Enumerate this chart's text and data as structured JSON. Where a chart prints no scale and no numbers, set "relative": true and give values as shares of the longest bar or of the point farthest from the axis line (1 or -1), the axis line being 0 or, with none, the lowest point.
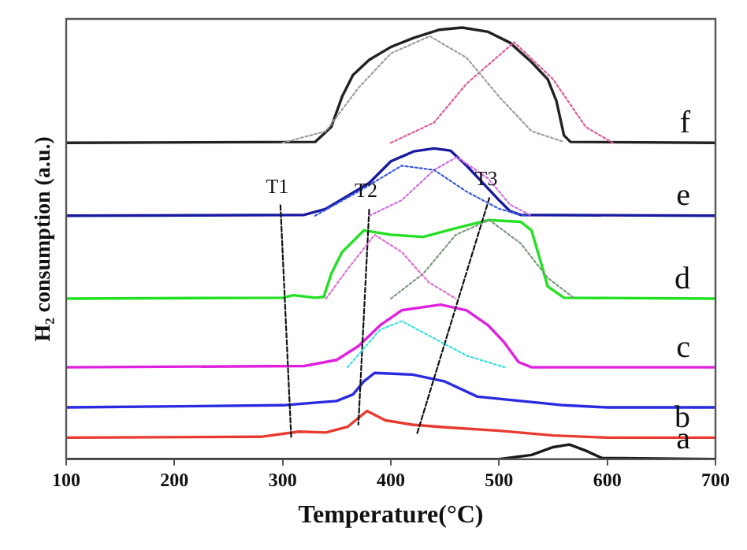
{
  "chart_data": {
    "type": "line",
    "relative": true,
    "xlabel": "Temperature(°C)",
    "ylabel": "H₂ consumption (a.u.)",
    "xlim": [
      100,
      700
    ],
    "xticks": [
      100,
      200,
      300,
      400,
      500,
      600,
      700
    ],
    "grid": false,
    "legend": false,
    "marker": "none",
    "series": [
      {
        "name": "a",
        "color": "#1a1a1a",
        "x": [
          100,
          500,
          530,
          550,
          565,
          580,
          595,
          700
        ],
        "values": [
          0,
          0,
          0.01,
          0.028,
          0.034,
          0.02,
          0.003,
          0
        ]
      },
      {
        "name": "b",
        "color": "#e83a2e",
        "x": [
          100,
          280,
          315,
          340,
          360,
          378,
          395,
          420,
          450,
          500,
          550,
          600,
          700
        ],
        "values": [
          0.05,
          0.052,
          0.064,
          0.062,
          0.075,
          0.112,
          0.09,
          0.08,
          0.074,
          0.066,
          0.055,
          0.05,
          0.05
        ]
      },
      {
        "color": "#2a2ae0",
        "x": [
          100,
          300,
          350,
          365,
          375,
          385,
          420,
          450,
          480,
          520,
          560,
          600,
          700
        ],
        "values": [
          0.12,
          0.125,
          0.135,
          0.15,
          0.18,
          0.2,
          0.196,
          0.18,
          0.145,
          0.135,
          0.125,
          0.12,
          0.12
        ]
      },
      {
        "name": "c",
        "color": "#e020e0",
        "x": [
          100,
          320,
          350,
          370,
          390,
          410,
          446,
          470,
          490,
          505,
          518,
          530,
          700
        ],
        "values": [
          0.213,
          0.216,
          0.23,
          0.262,
          0.31,
          0.345,
          0.358,
          0.345,
          0.31,
          0.27,
          0.225,
          0.213,
          0.213
        ]
      },
      {
        "name": "d",
        "color": "#22e022",
        "x": [
          100,
          300,
          310,
          330,
          338,
          345,
          355,
          375,
          400,
          430,
          460,
          490,
          520,
          530,
          537,
          545,
          560,
          700
        ],
        "values": [
          0.372,
          0.374,
          0.38,
          0.374,
          0.376,
          0.43,
          0.48,
          0.53,
          0.52,
          0.515,
          0.535,
          0.554,
          0.55,
          0.53,
          0.47,
          0.4,
          0.374,
          0.372
        ]
      },
      {
        "name": "e",
        "color": "#1a1aa0",
        "x": [
          100,
          320,
          340,
          360,
          380,
          400,
          421,
          440,
          455,
          470,
          485,
          500,
          510,
          520,
          700
        ],
        "values": [
          0.564,
          0.566,
          0.58,
          0.61,
          0.64,
          0.69,
          0.713,
          0.72,
          0.715,
          0.68,
          0.64,
          0.6,
          0.575,
          0.566,
          0.564
        ]
      },
      {
        "name": "f",
        "color": "#222222",
        "x": [
          100,
          330,
          345,
          355,
          365,
          380,
          400,
          421,
          445,
          466,
          490,
          510,
          530,
          545,
          553,
          560,
          566,
          700
        ],
        "values": [
          0.733,
          0.735,
          0.77,
          0.84,
          0.89,
          0.925,
          0.955,
          0.976,
          0.995,
          1,
          0.99,
          0.965,
          0.92,
          0.88,
          0.83,
          0.75,
          0.735,
          0.733
        ]
      },
      {
        "color": "#9e9e9e",
        "line_style": "dotted",
        "x": [
          300,
          340,
          370,
          400,
          436,
          470,
          500,
          530,
          560
        ],
        "values": [
          0.733,
          0.76,
          0.86,
          0.94,
          0.98,
          0.93,
          0.84,
          0.76,
          0.735
        ]
      },
      {
        "color": "#e05a9e",
        "line_style": "dotted",
        "x": [
          400,
          440,
          470,
          514,
          550,
          580,
          605
        ],
        "values": [
          0.733,
          0.78,
          0.87,
          0.966,
          0.88,
          0.77,
          0.733
        ]
      },
      {
        "color": "#3a5ae0",
        "line_style": "dotted",
        "x": [
          330,
          370,
          410,
          440,
          470,
          500,
          525
        ],
        "values": [
          0.564,
          0.62,
          0.68,
          0.67,
          0.62,
          0.58,
          0.564
        ]
      },
      {
        "color": "#d070e0",
        "line_style": "dotted",
        "x": [
          380,
          410,
          440,
          461,
          490,
          510,
          530
        ],
        "values": [
          0.564,
          0.6,
          0.67,
          0.7,
          0.65,
          0.59,
          0.564
        ]
      },
      {
        "color": "#e070d0",
        "line_style": "dotted",
        "x": [
          340,
          360,
          385,
          410,
          435,
          460
        ],
        "values": [
          0.372,
          0.44,
          0.52,
          0.48,
          0.41,
          0.372
        ]
      },
      {
        "color": "#7a9a7a",
        "line_style": "dotted",
        "x": [
          400,
          430,
          460,
          491,
          520,
          545,
          570
        ],
        "values": [
          0.372,
          0.43,
          0.52,
          0.554,
          0.5,
          0.42,
          0.372
        ]
      },
      {
        "color": "#40e0e0",
        "line_style": "dotted",
        "x": [
          360,
          390,
          410,
          440,
          470,
          505
        ],
        "values": [
          0.213,
          0.3,
          0.32,
          0.28,
          0.24,
          0.213
        ]
      },
      {
        "name": "T1",
        "color": "#111111",
        "line_style": "dashed",
        "x": [
          298,
          308
        ],
        "values": [
          0.588,
          0.047
        ]
      },
      {
        "name": "T2",
        "color": "#111111",
        "line_style": "dashed",
        "x": [
          380,
          370
        ],
        "values": [
          0.578,
          0.08
        ]
      },
      {
        "name": "T3",
        "color": "#111111",
        "line_style": "dashed",
        "x": [
          491,
          424
        ],
        "values": [
          0.605,
          0.057
        ]
      }
    ]
  }
}
